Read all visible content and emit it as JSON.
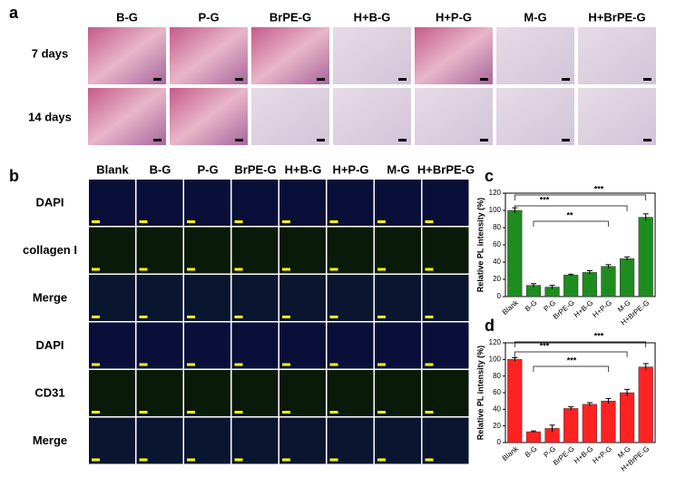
{
  "panel_a": {
    "label": "a",
    "columns": [
      "B-G",
      "P-G",
      "BrPE-G",
      "H+B-G",
      "H+P-G",
      "M-G",
      "H+BrPE-G"
    ],
    "rows": [
      "7 days",
      "14 days"
    ]
  },
  "panel_b": {
    "label": "b",
    "columns": [
      "Blank",
      "B-G",
      "P-G",
      "BrPE-G",
      "H+B-G",
      "H+P-G",
      "M-G",
      "H+BrPE-G"
    ],
    "rows": [
      "DAPI",
      "collagen I",
      "Merge",
      "DAPI",
      "CD31",
      "Merge"
    ]
  },
  "chart_data": [
    {
      "type": "bar",
      "label": "c",
      "ylabel": "Relative PL intensity (%)",
      "color": "#1e8c1e",
      "categories": [
        "Blank",
        "B-G",
        "P-G",
        "BrPE-G",
        "H+B-G",
        "H+P-G",
        "M-G",
        "H+BrPE-G"
      ],
      "values": [
        100,
        13,
        11,
        25,
        28,
        35,
        44,
        92
      ],
      "errors": [
        3,
        2,
        2,
        1,
        2,
        2,
        2,
        4
      ],
      "ylim": [
        0,
        120
      ],
      "yticks": [
        0,
        20,
        40,
        60,
        80,
        100,
        120
      ],
      "annotations": [
        "***",
        "**",
        "***"
      ]
    },
    {
      "type": "bar",
      "label": "d",
      "ylabel": "Relative PL intensity (%)",
      "color": "#ff2222",
      "categories": [
        "Blank",
        "B-G",
        "P-G",
        "BrPE-G",
        "H+B-G",
        "H+P-G",
        "M-G",
        "H+BrPE-G"
      ],
      "values": [
        100,
        13,
        17,
        41,
        46,
        50,
        60,
        91
      ],
      "errors": [
        2,
        1,
        4,
        2,
        2,
        3,
        4,
        4
      ],
      "ylim": [
        0,
        120
      ],
      "yticks": [
        0,
        20,
        40,
        60,
        80,
        100,
        120
      ],
      "annotations": [
        "***",
        "***",
        "***"
      ]
    }
  ]
}
